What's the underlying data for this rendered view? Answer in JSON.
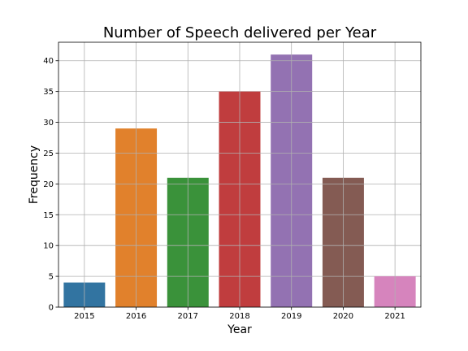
{
  "chart_data": {
    "type": "bar",
    "title": "Number of Speech delivered per Year",
    "xlabel": "Year",
    "ylabel": "Frequency",
    "categories": [
      "2015",
      "2016",
      "2017",
      "2018",
      "2019",
      "2020",
      "2021"
    ],
    "values": [
      4,
      29,
      21,
      35,
      41,
      21,
      5
    ],
    "colors": [
      "#3274a1",
      "#e1812c",
      "#3a923a",
      "#c03d3e",
      "#9372b2",
      "#845b53",
      "#d684bd"
    ],
    "ylim": [
      0,
      43
    ],
    "yticks": [
      0,
      5,
      10,
      15,
      20,
      25,
      30,
      35,
      40
    ],
    "grid": true,
    "legend": "none"
  }
}
